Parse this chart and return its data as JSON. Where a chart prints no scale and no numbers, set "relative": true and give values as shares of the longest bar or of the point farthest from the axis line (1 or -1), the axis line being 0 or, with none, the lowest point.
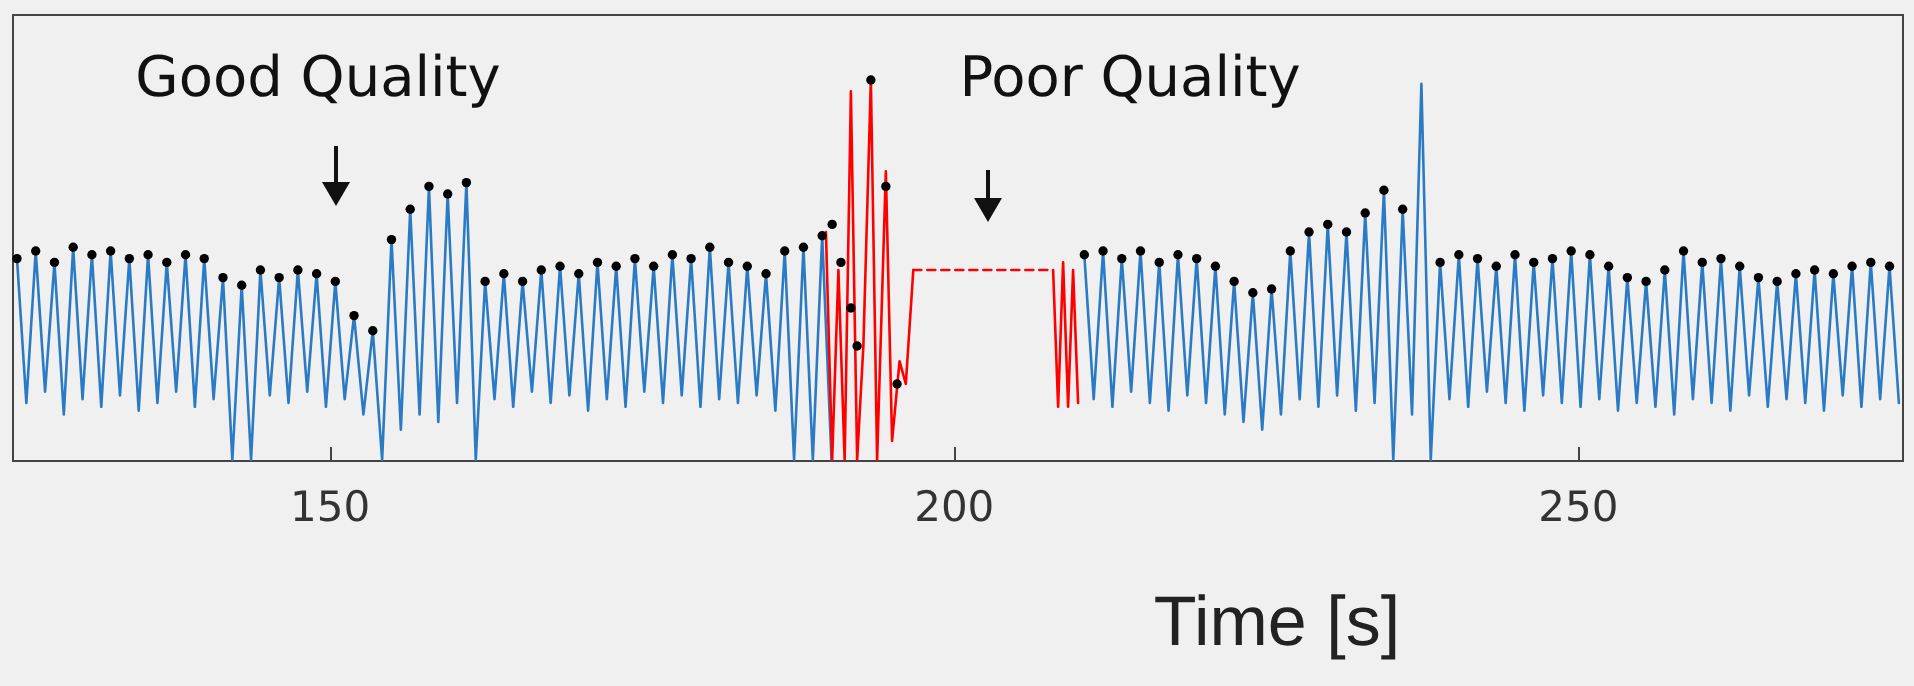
{
  "chart_data": {
    "type": "line",
    "xlabel": "Time [s]",
    "xlim": [
      124.6,
      276
    ],
    "xticks": [
      150,
      200,
      250
    ],
    "relative": true,
    "annotations": [
      "Good Quality",
      "Poor Quality"
    ],
    "series": [
      {
        "color": "#2b7bc4",
        "x": [
          125,
          125.75,
          126.5,
          127.25,
          128,
          128.75,
          129.5,
          130.25,
          131,
          131.75,
          132.5,
          133.25,
          134,
          134.75,
          135.5,
          136.25,
          137,
          137.75,
          138.5,
          139.25,
          140,
          140.75,
          141.5,
          142.25,
          143,
          143.75,
          144.5,
          145.25,
          146,
          146.75,
          147.5,
          148.25,
          149,
          149.75,
          150.5,
          151.25,
          152,
          152.75,
          153.5,
          154.25,
          155,
          155.75,
          156.5,
          157.25,
          158,
          158.75,
          159.5,
          160.25,
          161,
          161.75,
          162.5,
          163.25,
          164,
          164.75,
          165.5,
          166.25,
          167,
          167.75,
          168.5,
          169.25,
          170,
          170.75,
          171.5,
          172.25,
          173,
          173.75,
          174.5,
          175.25,
          176,
          176.75,
          177.5,
          178.25,
          179,
          179.75,
          180.5,
          181.25,
          182,
          182.75,
          183.5,
          184.25,
          185,
          185.75,
          186.5,
          187.25,
          188,
          188.75,
          189.5,
          190.25
        ],
        "values": [
          0.53,
          0.15,
          0.55,
          0.18,
          0.52,
          0.12,
          0.56,
          0.16,
          0.54,
          0.14,
          0.55,
          0.17,
          0.53,
          0.13,
          0.54,
          0.15,
          0.52,
          0.18,
          0.54,
          0.14,
          0.53,
          0.16,
          0.48,
          0,
          0.46,
          0,
          0.5,
          0.17,
          0.48,
          0.15,
          0.5,
          0.18,
          0.49,
          0.14,
          0.47,
          0.16,
          0.38,
          0.12,
          0.34,
          0,
          0.58,
          0.08,
          0.66,
          0.12,
          0.72,
          0.1,
          0.7,
          0.15,
          0.73,
          0,
          0.47,
          0.16,
          0.49,
          0.14,
          0.47,
          0.18,
          0.5,
          0.15,
          0.51,
          0.17,
          0.49,
          0.13,
          0.52,
          0.16,
          0.51,
          0.14,
          0.53,
          0.18,
          0.51,
          0.15,
          0.54,
          0.17,
          0.53,
          0.14,
          0.56,
          0.16,
          0.52,
          0.15,
          0.51,
          0.17,
          0.49,
          0.13,
          0.55,
          0,
          0.56,
          0,
          0.59,
          0
        ]
      },
      {
        "color": "#2b7bc4",
        "x": [
          210.5,
          211.25,
          212,
          212.75,
          213.5,
          214.25,
          215,
          215.75,
          216.5,
          217.25,
          218,
          218.75,
          219.5,
          220.25,
          221,
          221.75,
          222.5,
          223.25,
          224,
          224.75,
          225.5,
          226.25,
          227,
          227.75,
          228.5,
          229.25,
          230,
          230.75,
          231.5,
          232.25,
          233,
          233.75,
          234.5,
          235.25,
          236,
          236.75,
          237.5,
          238.25,
          239,
          239.75,
          240.5,
          241.25,
          242,
          242.75,
          243.5,
          244.25,
          245,
          245.75,
          246.5,
          247.25,
          248,
          248.75,
          249.5,
          250.25,
          251,
          251.75,
          252.5,
          253.25,
          254,
          254.75,
          255.5,
          256.25,
          257,
          257.75,
          258.5,
          259.25,
          260,
          260.75,
          261.5,
          262.25,
          263,
          263.75,
          264.5,
          265.25,
          266,
          266.75,
          267.5,
          268.25,
          269,
          269.75,
          270.5,
          271.25,
          272,
          272.75,
          273.5,
          274.25,
          275,
          275.75
        ],
        "values": [
          0.54,
          0.16,
          0.55,
          0.14,
          0.53,
          0.18,
          0.55,
          0.15,
          0.52,
          0.13,
          0.54,
          0.17,
          0.53,
          0.15,
          0.51,
          0.12,
          0.47,
          0.1,
          0.44,
          0.08,
          0.45,
          0.12,
          0.55,
          0.16,
          0.6,
          0.14,
          0.62,
          0.17,
          0.6,
          0.13,
          0.65,
          0.15,
          0.71,
          0,
          0.66,
          0.12,
          0.99,
          0,
          0.52,
          0.16,
          0.54,
          0.14,
          0.53,
          0.18,
          0.51,
          0.15,
          0.54,
          0.13,
          0.52,
          0.17,
          0.53,
          0.15,
          0.55,
          0.14,
          0.54,
          0.16,
          0.51,
          0.13,
          0.48,
          0.15,
          0.47,
          0.14,
          0.5,
          0.12,
          0.55,
          0.16,
          0.52,
          0.15,
          0.53,
          0.13,
          0.51,
          0.17,
          0.48,
          0.14,
          0.47,
          0.16,
          0.49,
          0.15,
          0.5,
          0.13,
          0.49,
          0.17,
          0.51,
          0.14,
          0.52,
          0.16,
          0.51,
          0.15
        ]
      },
      {
        "color": "#ff0000",
        "x": [
          189.8,
          190.3,
          190.8,
          191.3,
          191.8,
          192.3,
          192.8,
          193.4,
          193.9,
          194.6,
          195.1,
          195.7,
          196.2,
          196.8
        ],
        "values": [
          0.6,
          0,
          0.5,
          0,
          0.97,
          0,
          0.3,
          1.0,
          0,
          0.76,
          0.05,
          0.26,
          0.2,
          0.5
        ]
      },
      {
        "color": "#ff0000",
        "x": [
          208,
          208.4,
          208.8,
          209.2,
          209.6,
          210
        ],
        "values": [
          0.5,
          0.14,
          0.52,
          0.14,
          0.5,
          0.15
        ]
      },
      {
        "color": "#ff0000",
        "line_style": "dashed",
        "x": [
          196.8,
          202,
          208
        ],
        "values": [
          0.5,
          0.5,
          0.5
        ]
      },
      {
        "type": "scatter",
        "color": "#000000",
        "marker": "circle",
        "x": [
          125,
          126.5,
          128,
          129.5,
          131,
          132.5,
          134,
          135.5,
          137,
          138.5,
          140,
          141.5,
          143,
          144.5,
          146,
          147.5,
          149,
          150.5,
          152,
          153.5,
          155,
          156.5,
          158,
          159.5,
          161,
          162.5,
          164,
          165.5,
          167,
          168.5,
          170,
          171.5,
          173,
          174.5,
          176,
          177.5,
          179,
          180.5,
          182,
          183.5,
          185,
          186.5,
          188,
          189.5,
          190.3,
          191,
          191.8,
          192.3,
          193.4,
          194.6,
          195.5,
          210.5,
          212,
          213.5,
          215,
          216.5,
          218,
          219.5,
          221,
          222.5,
          224,
          225.5,
          227,
          228.5,
          230,
          231.5,
          233,
          234.5,
          236,
          239,
          240.5,
          242,
          243.5,
          245,
          246.5,
          248,
          249.5,
          251,
          252.5,
          254,
          255.5,
          257,
          258.5,
          260,
          261.5,
          263,
          264.5,
          266,
          267.5,
          269,
          270.5,
          272,
          273.5,
          275
        ],
        "values": [
          0.53,
          0.55,
          0.52,
          0.56,
          0.54,
          0.55,
          0.53,
          0.54,
          0.52,
          0.54,
          0.53,
          0.48,
          0.46,
          0.5,
          0.48,
          0.5,
          0.49,
          0.47,
          0.38,
          0.34,
          0.58,
          0.66,
          0.72,
          0.7,
          0.73,
          0.47,
          0.49,
          0.47,
          0.5,
          0.51,
          0.49,
          0.52,
          0.51,
          0.53,
          0.51,
          0.54,
          0.53,
          0.56,
          0.52,
          0.51,
          0.49,
          0.55,
          0.56,
          0.59,
          0.62,
          0.52,
          0.4,
          0.3,
          1.0,
          0.72,
          0.2,
          0.54,
          0.55,
          0.53,
          0.55,
          0.52,
          0.54,
          0.53,
          0.51,
          0.47,
          0.44,
          0.45,
          0.55,
          0.6,
          0.62,
          0.6,
          0.65,
          0.71,
          0.66,
          0.52,
          0.54,
          0.53,
          0.51,
          0.54,
          0.52,
          0.53,
          0.55,
          0.54,
          0.51,
          0.48,
          0.47,
          0.5,
          0.55,
          0.52,
          0.53,
          0.51,
          0.48,
          0.47,
          0.49,
          0.5,
          0.49,
          0.51,
          0.52,
          0.51
        ]
      }
    ]
  }
}
